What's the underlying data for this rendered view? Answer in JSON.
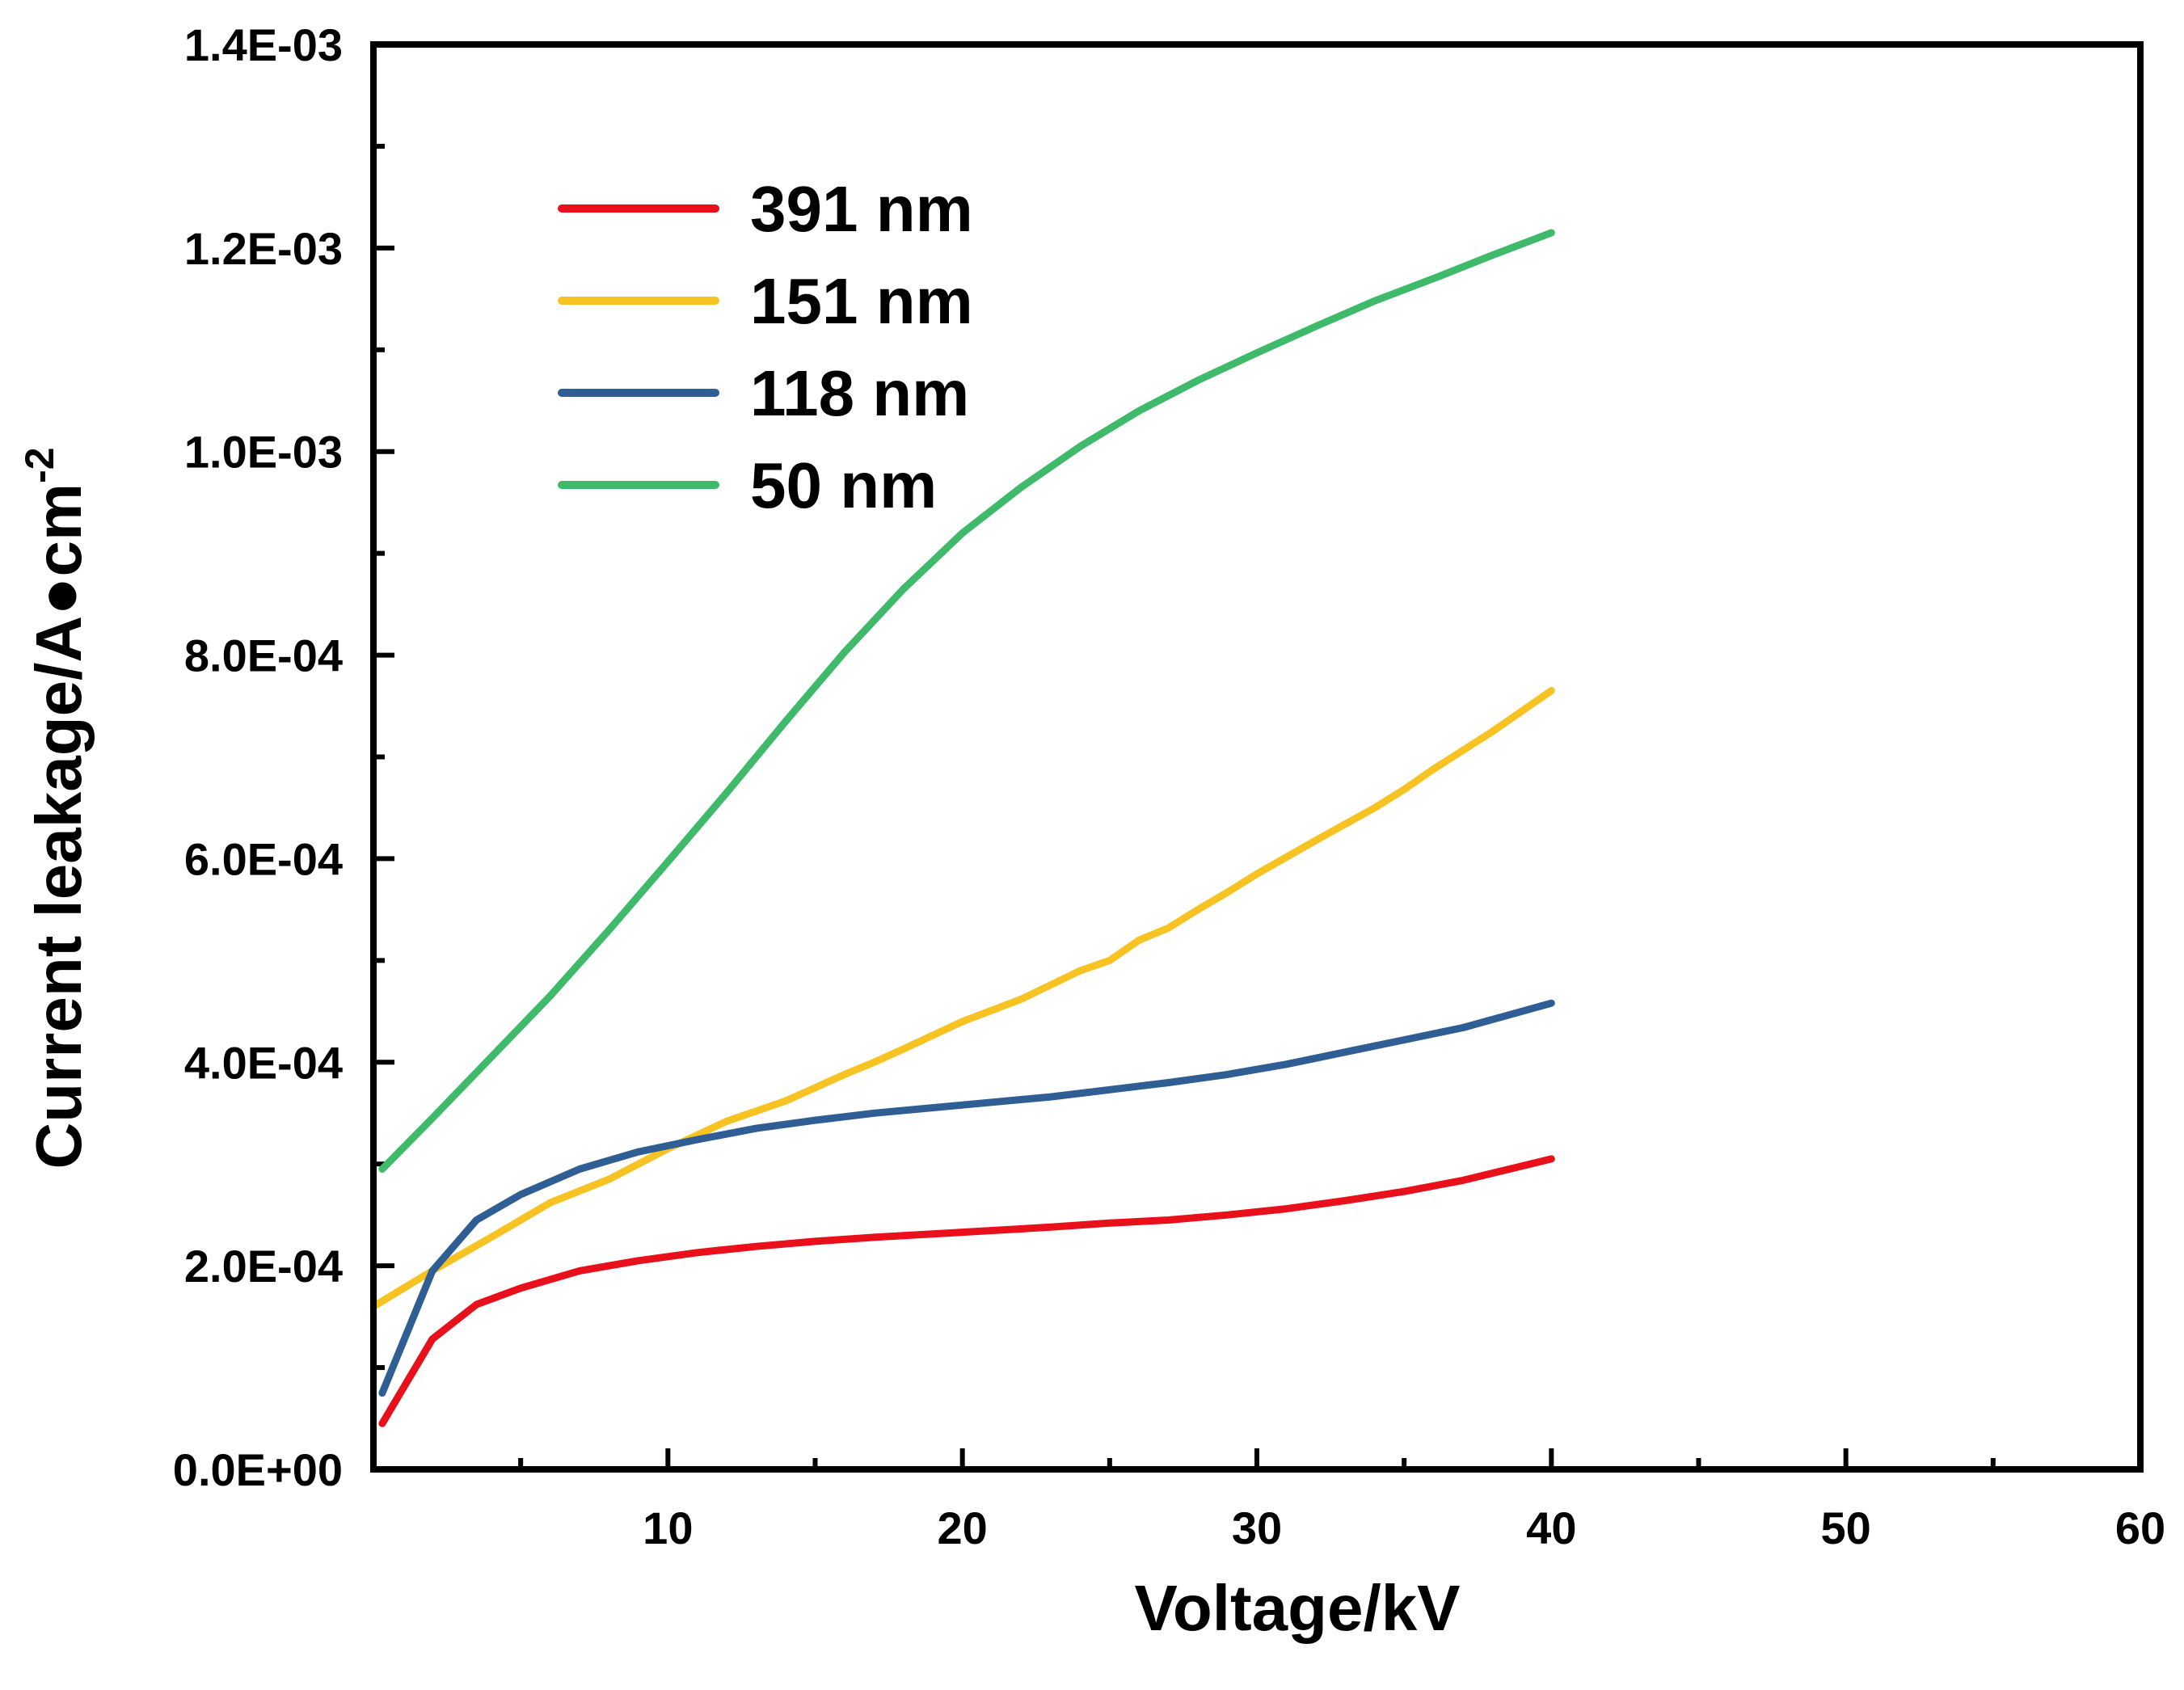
{
  "chart_data": {
    "type": "line",
    "title": "",
    "xlabel": "Voltage/kV",
    "ylabel_main": "Current leakage/A●cm",
    "ylabel_sup": "-2",
    "xlim": [
      0,
      60
    ],
    "ylim": [
      0,
      0.0014
    ],
    "x_ticks": [
      10,
      20,
      30,
      40,
      50,
      60
    ],
    "x_tick_labels": [
      "10",
      "20",
      "30",
      "40",
      "50",
      "60"
    ],
    "y_ticks": [
      0,
      0.0002,
      0.0004,
      0.0006,
      0.0008,
      0.001,
      0.0012,
      0.0014
    ],
    "y_tick_labels": [
      "0.0E+00",
      "2.0E-04",
      "4.0E-04",
      "6.0E-04",
      "8.0E-04",
      "1.0E-03",
      "1.2E-03",
      "1.4E-03"
    ],
    "grid": false,
    "legend_position": "top-left",
    "series": [
      {
        "name": "391 nm",
        "color": "#e8101a",
        "x": [
          0.3,
          2,
          3.5,
          5,
          7,
          9,
          11,
          13,
          15,
          17,
          20,
          23,
          25,
          27,
          29,
          31,
          33,
          35,
          37,
          39,
          40
        ],
        "y": [
          4.5e-05,
          0.000128,
          0.000162,
          0.000178,
          0.000195,
          0.000205,
          0.000213,
          0.000219,
          0.000224,
          0.000228,
          0.000233,
          0.000238,
          0.000242,
          0.000245,
          0.00025,
          0.000256,
          0.000264,
          0.000273,
          0.000284,
          0.000298,
          0.000305
        ]
      },
      {
        "name": "151 nm",
        "color": "#f7c322",
        "x": [
          0,
          2,
          4,
          6,
          8,
          10,
          12,
          14,
          15,
          16,
          17,
          18,
          20,
          22,
          24,
          25,
          26,
          27,
          28,
          29,
          30,
          32,
          34,
          35,
          36,
          38,
          40
        ],
        "y": [
          0.00016,
          0.000195,
          0.000228,
          0.000262,
          0.000285,
          0.000315,
          0.000342,
          0.000362,
          0.000375,
          0.000388,
          0.0004,
          0.000413,
          0.00044,
          0.000462,
          0.00049,
          0.0005,
          0.00052,
          0.000532,
          0.00055,
          0.000567,
          0.000585,
          0.000618,
          0.00065,
          0.000668,
          0.000688,
          0.000725,
          0.000765
        ]
      },
      {
        "name": "118 nm",
        "color": "#2e5e94",
        "x": [
          0.3,
          2,
          3.5,
          5,
          7,
          9,
          11,
          13,
          15,
          17,
          20,
          23,
          25,
          27,
          29,
          31,
          33,
          35,
          37,
          39,
          40
        ],
        "y": [
          7.5e-05,
          0.000195,
          0.000245,
          0.00027,
          0.000295,
          0.000312,
          0.000324,
          0.000335,
          0.000343,
          0.00035,
          0.000358,
          0.000366,
          0.000373,
          0.00038,
          0.000388,
          0.000398,
          0.00041,
          0.000422,
          0.000434,
          0.00045,
          0.000458
        ]
      },
      {
        "name": "50 nm",
        "color": "#3fba6b",
        "x": [
          0.3,
          2,
          4,
          6,
          8,
          10,
          12,
          14,
          16,
          18,
          20,
          22,
          24,
          26,
          28,
          30,
          32,
          34,
          36,
          38,
          40
        ],
        "y": [
          0.000295,
          0.000345,
          0.000405,
          0.000465,
          0.00053,
          0.000597,
          0.000665,
          0.000735,
          0.000803,
          0.000865,
          0.00092,
          0.000965,
          0.001005,
          0.00104,
          0.00107,
          0.001097,
          0.001123,
          0.001148,
          0.00117,
          0.001193,
          0.001215
        ]
      }
    ]
  }
}
